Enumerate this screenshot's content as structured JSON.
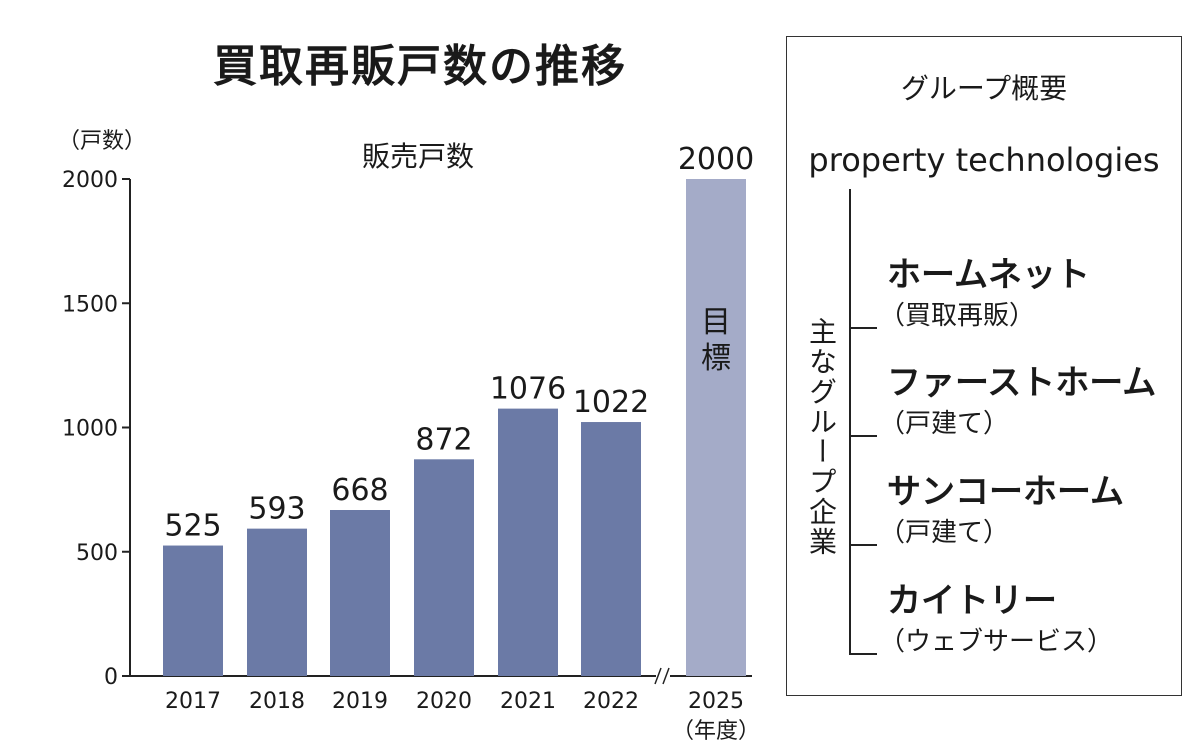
{
  "title": "買取再販戸数の推移",
  "chart_data": {
    "type": "bar",
    "title": "買取再販戸数の推移",
    "series_label": "販売戸数",
    "ylabel": "（戸数）",
    "xlabel": "（年度）",
    "ylim": [
      0,
      2000
    ],
    "yticks": [
      0,
      500,
      1000,
      1500,
      2000
    ],
    "grid": false,
    "categories": [
      "2017",
      "2018",
      "2019",
      "2020",
      "2021",
      "2022",
      "2025"
    ],
    "values": [
      525,
      593,
      668,
      872,
      1076,
      1022,
      2000
    ],
    "target_category": "2025",
    "target_label": "目標",
    "axis_break_between": [
      "2022",
      "2025"
    ],
    "colors": {
      "actual": "#6b7aa6",
      "target": "#a4abc8"
    }
  },
  "group_panel": {
    "title": "グループ概要",
    "parent": "property technologies",
    "side_label": "主なグループ企業",
    "companies": [
      {
        "name": "ホームネット",
        "business": "（買取再販）"
      },
      {
        "name": "ファーストホーム",
        "business": "（戸建て）"
      },
      {
        "name": "サンコーホーム",
        "business": "（戸建て）"
      },
      {
        "name": "カイトリー",
        "business": "（ウェブサービス）"
      }
    ]
  }
}
